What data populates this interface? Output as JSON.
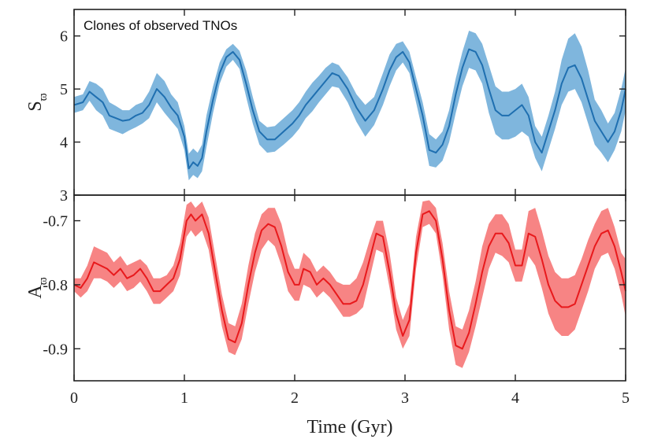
{
  "chart_data": [
    {
      "type": "line",
      "panel": "top",
      "annotation": "Clones of observed TNOs",
      "ylabel_main": "S",
      "ylabel_sub": "ϖ",
      "xlabel": "",
      "xlim": [
        0,
        5
      ],
      "ylim": [
        3,
        6.5
      ],
      "yticks": [
        3,
        4,
        5,
        6
      ],
      "ytick_labels": [
        "3",
        "4",
        "5",
        "6"
      ],
      "xticks": [
        0,
        1,
        2,
        3,
        4,
        5
      ],
      "line_color": "#1f6fb0",
      "band_color": "#7fb6dd",
      "series": [
        {
          "name": "median",
          "x": [
            0,
            0.08,
            0.14,
            0.2,
            0.26,
            0.32,
            0.38,
            0.44,
            0.5,
            0.56,
            0.62,
            0.68,
            0.75,
            0.82,
            0.88,
            0.94,
            1.0,
            1.04,
            1.08,
            1.12,
            1.16,
            1.2,
            1.26,
            1.32,
            1.38,
            1.44,
            1.5,
            1.56,
            1.62,
            1.68,
            1.75,
            1.82,
            1.9,
            1.98,
            2.04,
            2.1,
            2.16,
            2.22,
            2.28,
            2.34,
            2.4,
            2.48,
            2.56,
            2.64,
            2.72,
            2.8,
            2.86,
            2.92,
            2.98,
            3.04,
            3.1,
            3.16,
            3.22,
            3.28,
            3.34,
            3.4,
            3.46,
            3.52,
            3.58,
            3.64,
            3.7,
            3.76,
            3.82,
            3.88,
            3.94,
            4.0,
            4.06,
            4.12,
            4.18,
            4.24,
            4.3,
            4.36,
            4.42,
            4.48,
            4.54,
            4.6,
            4.66,
            4.72,
            4.78,
            4.84,
            4.9,
            4.96,
            5.0
          ],
          "y": [
            4.7,
            4.75,
            4.95,
            4.85,
            4.75,
            4.5,
            4.45,
            4.4,
            4.42,
            4.5,
            4.55,
            4.7,
            5.0,
            4.85,
            4.65,
            4.5,
            4.1,
            3.5,
            3.62,
            3.55,
            3.7,
            4.2,
            4.8,
            5.3,
            5.6,
            5.7,
            5.55,
            5.1,
            4.6,
            4.2,
            4.05,
            4.05,
            4.2,
            4.35,
            4.5,
            4.7,
            4.85,
            5.0,
            5.15,
            5.3,
            5.25,
            5.0,
            4.65,
            4.4,
            4.6,
            5.0,
            5.35,
            5.6,
            5.7,
            5.5,
            5.0,
            4.5,
            3.85,
            3.8,
            3.95,
            4.3,
            4.9,
            5.4,
            5.75,
            5.7,
            5.45,
            5.0,
            4.6,
            4.5,
            4.5,
            4.6,
            4.7,
            4.5,
            4.0,
            3.8,
            4.2,
            4.6,
            5.1,
            5.4,
            5.45,
            5.2,
            4.8,
            4.4,
            4.2,
            4.0,
            4.2,
            4.6,
            5.0
          ]
        }
      ],
      "band": {
        "name": "spread",
        "upper": [
          4.85,
          4.9,
          5.15,
          5.1,
          5.0,
          4.75,
          4.68,
          4.6,
          4.6,
          4.7,
          4.75,
          4.95,
          5.3,
          5.15,
          4.9,
          4.75,
          4.3,
          3.78,
          3.88,
          3.8,
          3.95,
          4.5,
          5.05,
          5.5,
          5.75,
          5.85,
          5.72,
          5.35,
          4.85,
          4.4,
          4.28,
          4.3,
          4.45,
          4.6,
          4.75,
          4.95,
          5.12,
          5.25,
          5.4,
          5.5,
          5.45,
          5.22,
          4.9,
          4.7,
          4.85,
          5.3,
          5.65,
          5.85,
          5.9,
          5.7,
          5.22,
          4.75,
          4.15,
          4.05,
          4.2,
          4.6,
          5.2,
          5.7,
          6.1,
          6.05,
          5.85,
          5.45,
          5.05,
          4.95,
          4.95,
          5.0,
          5.1,
          4.85,
          4.3,
          4.1,
          4.5,
          4.95,
          5.55,
          5.95,
          6.05,
          5.8,
          5.35,
          4.8,
          4.6,
          4.35,
          4.55,
          5.0,
          5.4
        ],
        "lower": [
          4.55,
          4.6,
          4.78,
          4.6,
          4.5,
          4.25,
          4.2,
          4.15,
          4.22,
          4.28,
          4.35,
          4.45,
          4.75,
          4.55,
          4.4,
          4.25,
          3.85,
          3.28,
          3.38,
          3.32,
          3.45,
          3.9,
          4.55,
          5.1,
          5.42,
          5.55,
          5.38,
          4.85,
          4.35,
          3.95,
          3.8,
          3.82,
          3.95,
          4.1,
          4.25,
          4.45,
          4.58,
          4.75,
          4.9,
          5.05,
          5.02,
          4.75,
          4.38,
          4.1,
          4.32,
          4.7,
          5.05,
          5.35,
          5.5,
          5.3,
          4.75,
          4.2,
          3.55,
          3.52,
          3.65,
          4.0,
          4.55,
          5.05,
          5.4,
          5.35,
          5.1,
          4.55,
          4.15,
          4.05,
          4.05,
          4.1,
          4.2,
          4.1,
          3.7,
          3.45,
          3.85,
          4.25,
          4.7,
          4.95,
          5.0,
          4.75,
          4.35,
          3.95,
          3.8,
          3.62,
          3.85,
          4.2,
          4.6
        ]
      }
    },
    {
      "type": "line",
      "panel": "bottom",
      "ylabel_main": "A",
      "ylabel_sub": "ϖ",
      "xlabel": "Time (Gyr)",
      "xlim": [
        0,
        5
      ],
      "ylim": [
        -0.95,
        -0.66
      ],
      "yticks": [
        -0.9,
        -0.8,
        -0.7
      ],
      "ytick_labels": [
        "-0.9",
        "-0.8",
        "-0.7"
      ],
      "xticks": [
        0,
        1,
        2,
        3,
        4,
        5
      ],
      "xtick_labels": [
        "0",
        "1",
        "2",
        "3",
        "4",
        "5"
      ],
      "line_color": "#e8191c",
      "band_color": "#f78484",
      "series": [
        {
          "name": "median",
          "x": [
            0,
            0.06,
            0.12,
            0.18,
            0.24,
            0.3,
            0.36,
            0.42,
            0.48,
            0.54,
            0.6,
            0.66,
            0.72,
            0.78,
            0.84,
            0.9,
            0.96,
            1.02,
            1.06,
            1.1,
            1.16,
            1.22,
            1.28,
            1.34,
            1.4,
            1.46,
            1.52,
            1.58,
            1.64,
            1.7,
            1.76,
            1.82,
            1.88,
            1.94,
            2.0,
            2.04,
            2.08,
            2.14,
            2.2,
            2.26,
            2.32,
            2.38,
            2.44,
            2.5,
            2.56,
            2.62,
            2.68,
            2.74,
            2.8,
            2.86,
            2.92,
            2.98,
            3.04,
            3.1,
            3.16,
            3.22,
            3.28,
            3.34,
            3.4,
            3.46,
            3.52,
            3.58,
            3.64,
            3.7,
            3.76,
            3.82,
            3.88,
            3.94,
            4.0,
            4.06,
            4.12,
            4.18,
            4.24,
            4.3,
            4.36,
            4.42,
            4.48,
            4.54,
            4.6,
            4.66,
            4.72,
            4.78,
            4.84,
            4.9,
            4.96,
            5.0
          ],
          "y": [
            -0.8,
            -0.805,
            -0.79,
            -0.765,
            -0.77,
            -0.775,
            -0.785,
            -0.775,
            -0.79,
            -0.785,
            -0.775,
            -0.79,
            -0.81,
            -0.81,
            -0.8,
            -0.79,
            -0.76,
            -0.7,
            -0.69,
            -0.7,
            -0.69,
            -0.72,
            -0.78,
            -0.84,
            -0.885,
            -0.89,
            -0.86,
            -0.8,
            -0.75,
            -0.715,
            -0.705,
            -0.71,
            -0.74,
            -0.78,
            -0.8,
            -0.8,
            -0.775,
            -0.78,
            -0.8,
            -0.79,
            -0.8,
            -0.815,
            -0.83,
            -0.83,
            -0.825,
            -0.8,
            -0.76,
            -0.72,
            -0.725,
            -0.78,
            -0.845,
            -0.88,
            -0.855,
            -0.75,
            -0.69,
            -0.685,
            -0.7,
            -0.76,
            -0.84,
            -0.895,
            -0.9,
            -0.875,
            -0.83,
            -0.78,
            -0.74,
            -0.72,
            -0.72,
            -0.735,
            -0.77,
            -0.77,
            -0.72,
            -0.725,
            -0.76,
            -0.8,
            -0.825,
            -0.835,
            -0.835,
            -0.83,
            -0.8,
            -0.77,
            -0.74,
            -0.72,
            -0.715,
            -0.74,
            -0.78,
            -0.81
          ]
        }
      ],
      "band": {
        "name": "spread",
        "upper": [
          -0.79,
          -0.79,
          -0.77,
          -0.74,
          -0.745,
          -0.75,
          -0.765,
          -0.755,
          -0.77,
          -0.765,
          -0.76,
          -0.77,
          -0.79,
          -0.79,
          -0.785,
          -0.77,
          -0.735,
          -0.675,
          -0.67,
          -0.68,
          -0.67,
          -0.695,
          -0.755,
          -0.815,
          -0.86,
          -0.865,
          -0.83,
          -0.77,
          -0.72,
          -0.69,
          -0.68,
          -0.68,
          -0.705,
          -0.75,
          -0.775,
          -0.775,
          -0.75,
          -0.76,
          -0.78,
          -0.77,
          -0.78,
          -0.795,
          -0.8,
          -0.8,
          -0.79,
          -0.765,
          -0.73,
          -0.7,
          -0.7,
          -0.75,
          -0.82,
          -0.855,
          -0.83,
          -0.725,
          -0.67,
          -0.668,
          -0.68,
          -0.735,
          -0.81,
          -0.865,
          -0.87,
          -0.84,
          -0.795,
          -0.74,
          -0.705,
          -0.69,
          -0.69,
          -0.705,
          -0.745,
          -0.745,
          -0.685,
          -0.68,
          -0.715,
          -0.755,
          -0.78,
          -0.79,
          -0.79,
          -0.785,
          -0.76,
          -0.73,
          -0.705,
          -0.685,
          -0.68,
          -0.71,
          -0.75,
          -0.76
        ],
        "lower": [
          -0.81,
          -0.82,
          -0.81,
          -0.79,
          -0.79,
          -0.795,
          -0.805,
          -0.795,
          -0.81,
          -0.805,
          -0.795,
          -0.81,
          -0.83,
          -0.83,
          -0.82,
          -0.81,
          -0.785,
          -0.725,
          -0.715,
          -0.725,
          -0.715,
          -0.745,
          -0.805,
          -0.865,
          -0.905,
          -0.91,
          -0.885,
          -0.83,
          -0.78,
          -0.745,
          -0.73,
          -0.74,
          -0.77,
          -0.81,
          -0.825,
          -0.825,
          -0.8,
          -0.805,
          -0.82,
          -0.81,
          -0.82,
          -0.835,
          -0.85,
          -0.85,
          -0.845,
          -0.835,
          -0.79,
          -0.745,
          -0.75,
          -0.805,
          -0.87,
          -0.9,
          -0.88,
          -0.775,
          -0.71,
          -0.705,
          -0.72,
          -0.785,
          -0.87,
          -0.925,
          -0.93,
          -0.905,
          -0.865,
          -0.82,
          -0.775,
          -0.75,
          -0.755,
          -0.765,
          -0.795,
          -0.795,
          -0.755,
          -0.77,
          -0.805,
          -0.845,
          -0.87,
          -0.88,
          -0.88,
          -0.87,
          -0.84,
          -0.81,
          -0.775,
          -0.755,
          -0.75,
          -0.775,
          -0.815,
          -0.85
        ]
      }
    }
  ]
}
